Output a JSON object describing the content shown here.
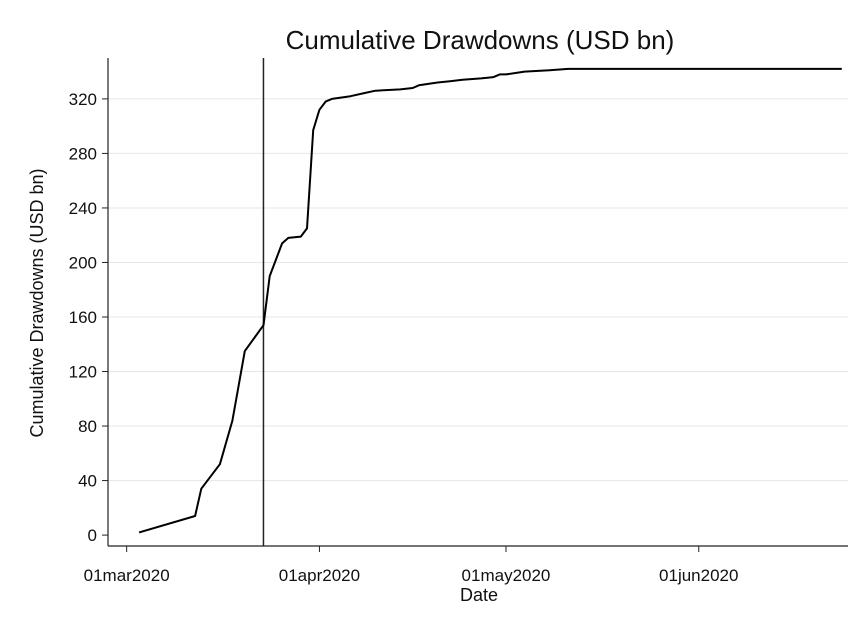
{
  "chart_data": {
    "type": "line",
    "title": "Cumulative Drawdowns (USD bn)",
    "xlabel": "Date",
    "ylabel": "Cumulative Drawdowns (USD bn)",
    "x_ticks": [
      "01mar2020",
      "01apr2020",
      "01may2020",
      "01jun2020"
    ],
    "y_ticks": [
      0,
      40,
      80,
      120,
      160,
      200,
      240,
      280,
      320
    ],
    "xlim": [
      "2020-02-27",
      "2020-06-25"
    ],
    "ylim": [
      -8,
      350
    ],
    "grid": "horizontal",
    "reference_line": {
      "x": "2020-03-23"
    },
    "series": [
      {
        "color": "#000000",
        "points": [
          {
            "x": "2020-03-03",
            "y": 2
          },
          {
            "x": "2020-03-12",
            "y": 14
          },
          {
            "x": "2020-03-13",
            "y": 34
          },
          {
            "x": "2020-03-16",
            "y": 52
          },
          {
            "x": "2020-03-18",
            "y": 84
          },
          {
            "x": "2020-03-20",
            "y": 135
          },
          {
            "x": "2020-03-23",
            "y": 154
          },
          {
            "x": "2020-03-24",
            "y": 190
          },
          {
            "x": "2020-03-26",
            "y": 214
          },
          {
            "x": "2020-03-27",
            "y": 218
          },
          {
            "x": "2020-03-29",
            "y": 219
          },
          {
            "x": "2020-03-30",
            "y": 225
          },
          {
            "x": "2020-03-31",
            "y": 297
          },
          {
            "x": "2020-04-01",
            "y": 312
          },
          {
            "x": "2020-04-02",
            "y": 318
          },
          {
            "x": "2020-04-03",
            "y": 320
          },
          {
            "x": "2020-04-06",
            "y": 322
          },
          {
            "x": "2020-04-08",
            "y": 324
          },
          {
            "x": "2020-04-10",
            "y": 326
          },
          {
            "x": "2020-04-14",
            "y": 327
          },
          {
            "x": "2020-04-16",
            "y": 328
          },
          {
            "x": "2020-04-17",
            "y": 330
          },
          {
            "x": "2020-04-20",
            "y": 332
          },
          {
            "x": "2020-04-22",
            "y": 333
          },
          {
            "x": "2020-04-24",
            "y": 334
          },
          {
            "x": "2020-04-27",
            "y": 335
          },
          {
            "x": "2020-04-29",
            "y": 336
          },
          {
            "x": "2020-04-30",
            "y": 338
          },
          {
            "x": "2020-05-01",
            "y": 338
          },
          {
            "x": "2020-05-04",
            "y": 340
          },
          {
            "x": "2020-05-08",
            "y": 341
          },
          {
            "x": "2020-05-11",
            "y": 342
          },
          {
            "x": "2020-05-20",
            "y": 342
          },
          {
            "x": "2020-06-01",
            "y": 342
          },
          {
            "x": "2020-06-15",
            "y": 342
          },
          {
            "x": "2020-06-24",
            "y": 342
          }
        ]
      }
    ]
  }
}
